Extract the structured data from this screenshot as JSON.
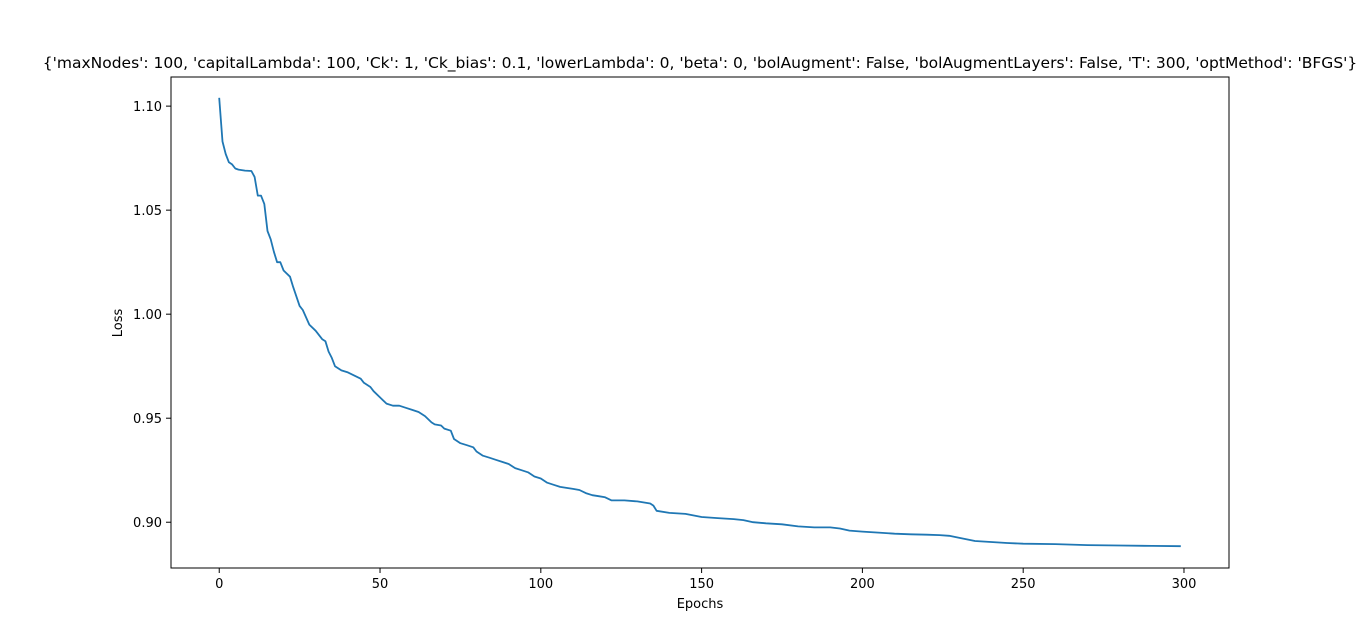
{
  "chart_data": {
    "type": "line",
    "title": "{'maxNodes': 100, 'capitalLambda': 100, 'Ck': 1, 'Ck_bias': 0.1, 'lowerLambda': 0, 'beta': 0, 'bolAugment': False, 'bolAugmentLayers': False, 'T': 300, 'optMethod': 'BFGS'}",
    "xlabel": "Epochs",
    "ylabel": "Loss",
    "xlim": [
      -15,
      314
    ],
    "ylim": [
      0.878,
      1.114
    ],
    "xticks": [
      0,
      50,
      100,
      150,
      200,
      250,
      300
    ],
    "xtick_labels": [
      "0",
      "50",
      "100",
      "150",
      "200",
      "250",
      "300"
    ],
    "yticks": [
      0.9,
      0.95,
      1.0,
      1.05,
      1.1
    ],
    "ytick_labels": [
      "0.90",
      "0.95",
      "1.00",
      "1.05",
      "1.10"
    ],
    "grid": false,
    "line_color": "#1f77b4",
    "series": [
      {
        "x": [
          0,
          1,
          2,
          3,
          4,
          5,
          6,
          8,
          10,
          11,
          12,
          13,
          14,
          15,
          16,
          17,
          18,
          19,
          20,
          22,
          23,
          25,
          26,
          28,
          30,
          32,
          33,
          34,
          35,
          36,
          38,
          40,
          42,
          44,
          45,
          47,
          48,
          50,
          52,
          54,
          56,
          58,
          60,
          62,
          64,
          66,
          67,
          69,
          70,
          72,
          73,
          75,
          77,
          79,
          80,
          82,
          84,
          86,
          88,
          90,
          92,
          94,
          96,
          98,
          100,
          102,
          104,
          106,
          108,
          110,
          112,
          114,
          116,
          118,
          120,
          122,
          126,
          130,
          134,
          135,
          136,
          140,
          145,
          150,
          155,
          160,
          163,
          166,
          170,
          175,
          180,
          185,
          190,
          193,
          196,
          200,
          205,
          210,
          215,
          220,
          224,
          227,
          230,
          235,
          240,
          245,
          250,
          260,
          270,
          280,
          290,
          299
        ],
        "y": [
          1.104,
          1.083,
          1.077,
          1.073,
          1.072,
          1.07,
          1.0695,
          1.069,
          1.0688,
          1.066,
          1.057,
          1.057,
          1.053,
          1.04,
          1.036,
          1.03,
          1.025,
          1.025,
          1.021,
          1.018,
          1.013,
          1.004,
          1.002,
          0.995,
          0.992,
          0.988,
          0.987,
          0.982,
          0.979,
          0.975,
          0.973,
          0.972,
          0.9705,
          0.969,
          0.967,
          0.965,
          0.963,
          0.96,
          0.957,
          0.956,
          0.956,
          0.955,
          0.954,
          0.953,
          0.951,
          0.948,
          0.947,
          0.9465,
          0.945,
          0.944,
          0.94,
          0.938,
          0.937,
          0.936,
          0.934,
          0.932,
          0.931,
          0.93,
          0.929,
          0.928,
          0.926,
          0.925,
          0.924,
          0.922,
          0.921,
          0.919,
          0.918,
          0.917,
          0.9165,
          0.916,
          0.9155,
          0.914,
          0.913,
          0.9125,
          0.912,
          0.9105,
          0.9105,
          0.91,
          0.909,
          0.908,
          0.9055,
          0.9045,
          0.904,
          0.9025,
          0.902,
          0.9015,
          0.901,
          0.9,
          0.8995,
          0.899,
          0.898,
          0.8975,
          0.8975,
          0.897,
          0.896,
          0.8955,
          0.895,
          0.8945,
          0.8942,
          0.894,
          0.8938,
          0.8935,
          0.8925,
          0.891,
          0.8905,
          0.89,
          0.8897,
          0.8895,
          0.889,
          0.8888,
          0.8886,
          0.8885
        ]
      }
    ]
  }
}
